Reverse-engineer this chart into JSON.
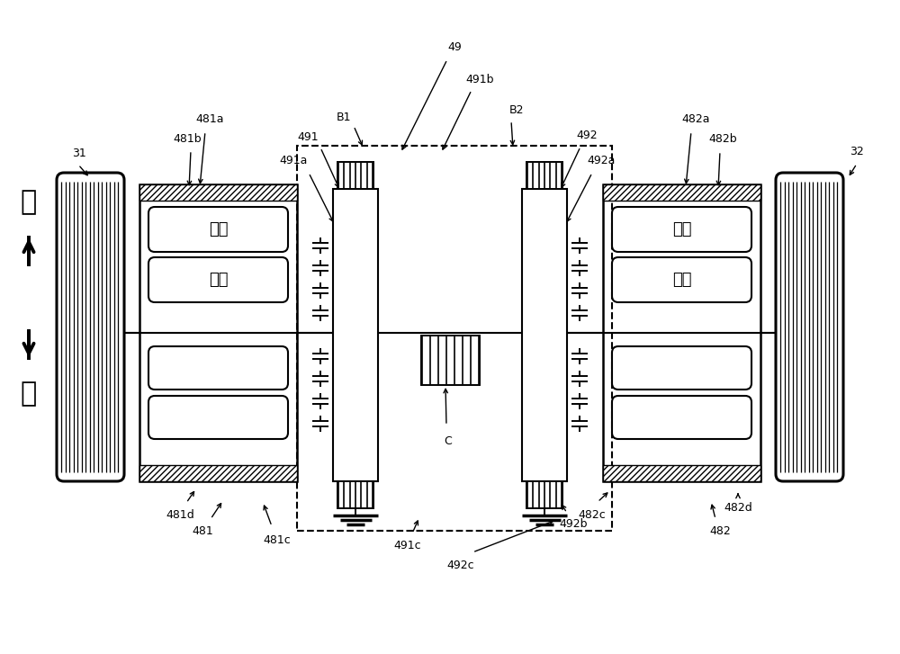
{
  "bg": "#ffffff",
  "figsize": [
    10.0,
    7.27
  ],
  "dpi": 100,
  "cn": {
    "qian": "前",
    "hou": "后",
    "dingzi": "定子",
    "zhuanzi": "转子"
  },
  "refs": {
    "n31": "31",
    "n32": "32",
    "n49": "49",
    "n491": "491",
    "n491a": "491a",
    "n491b": "491b",
    "n491c": "491c",
    "n492": "492",
    "n492a": "492a",
    "n492b": "492b",
    "n492c": "492c",
    "n481": "481",
    "n481a": "481a",
    "n481b": "481b",
    "n481c": "481c",
    "n481d": "481d",
    "n482": "482",
    "n482a": "482a",
    "n482b": "482b",
    "n482c": "482c",
    "n482d": "482d",
    "B1": "B1",
    "B2": "B2",
    "C": "C"
  }
}
